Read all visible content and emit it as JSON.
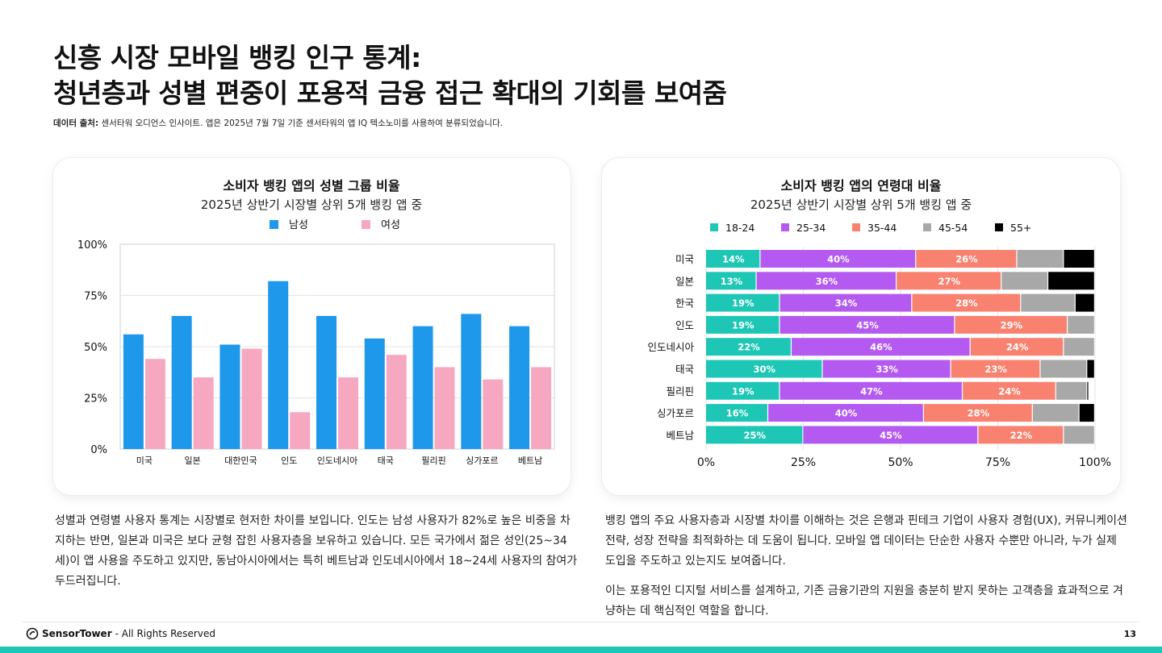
{
  "page": {
    "title_line1": "신흥 시장 모바일 뱅킹 인구 통계:",
    "title_line2": "청년층과 성별 편중이 포용적 금융 접근 확대의 기회를 보여줌",
    "source_label": "데이터 출처:",
    "source_text": "센서타워 오디언스 인사이트. 앱은 2025년 7월 7일 기준 센서타워의 앱 IQ 텍소노미를 사용하여 분류되었습니다.",
    "body_left": "성별과 연령별 사용자 통계는 시장별로 현저한 차이를 보입니다. 인도는 남성 사용자가 82%로 높은 비중을 차지하는 반면, 일본과 미국은 보다 균형 잡힌 사용자층을 보유하고 있습니다. 모든 국가에서 젊은 성인(25~34세)이 앱 사용을 주도하고 있지만, 동남아시아에서는 특히 베트남과 인도네시아에서 18~24세 사용자의 참여가 두드러집니다.",
    "body_right_p1": "뱅킹 앱의 주요 사용자층과 시장별 차이를 이해하는 것은 은행과 핀테크 기업이 사용자 경험(UX), 커뮤니케이션 전략, 성장 전략을 최적화하는 데 도움이 됩니다. 모바일 앱 데이터는 단순한 사용자 수뿐만 아니라, 누가 실제 도입을 주도하고 있는지도 보여줍니다.",
    "body_right_p2": "이는 포용적인 디지털 서비스를 설계하고, 기존 금융기관의 지원을 충분히 받지 못하는 고객층을 효과적으로 겨냥하는 데 핵심적인 역할을 합니다.",
    "footer_brand": "SensorTower",
    "footer_text": "- All Rights Reserved",
    "page_number": "13"
  },
  "colors": {
    "male": "#1e98ea",
    "female": "#f7a8c1",
    "age_18_24": "#1ec7b5",
    "age_25_34": "#b45af0",
    "age_35_44": "#f8826f",
    "age_45_54": "#a8a8a8",
    "age_55_plus": "#000000",
    "accent": "#1ec7b5"
  },
  "chart_data": [
    {
      "type": "bar",
      "title": "소비자 뱅킹 앱의 성별 그룹 비율",
      "subtitle": "2025년 상반기 시장별 상위 5개 뱅킹 앱 중",
      "categories": [
        "미국",
        "일본",
        "대한민국",
        "인도",
        "인도네시아",
        "태국",
        "필리핀",
        "싱가포르",
        "베트남"
      ],
      "series": [
        {
          "name": "남성",
          "values": [
            56,
            65,
            51,
            82,
            65,
            54,
            60,
            66,
            60
          ]
        },
        {
          "name": "여성",
          "values": [
            44,
            35,
            49,
            18,
            35,
            46,
            40,
            34,
            40
          ]
        }
      ],
      "ylim": [
        0,
        100
      ],
      "yticks": [
        "0%",
        "25%",
        "50%",
        "75%",
        "100%"
      ],
      "legend": "top-center",
      "grid": true
    },
    {
      "type": "bar",
      "orientation": "horizontal-stacked",
      "title": "소비자 뱅킹 앱의 연령대 비율",
      "subtitle": "2025년 상반기 시장별 상위 5개 뱅킹 앱 중",
      "categories": [
        "미국",
        "일본",
        "한국",
        "인도",
        "인도네시아",
        "태국",
        "필리핀",
        "싱가포르",
        "베트남"
      ],
      "series": [
        {
          "name": "18-24",
          "values": [
            14,
            13,
            19,
            19,
            22,
            30,
            19,
            16,
            25
          ]
        },
        {
          "name": "25-34",
          "values": [
            40,
            36,
            34,
            45,
            46,
            33,
            47,
            40,
            45
          ]
        },
        {
          "name": "35-44",
          "values": [
            26,
            27,
            28,
            29,
            24,
            23,
            24,
            28,
            22
          ]
        },
        {
          "name": "45-54",
          "values": [
            12,
            12,
            14,
            7,
            8,
            12,
            8,
            12,
            8
          ]
        },
        {
          "name": "55+",
          "values": [
            8,
            12,
            5,
            0,
            0,
            2,
            0.5,
            4,
            0
          ]
        }
      ],
      "xlim": [
        0,
        100
      ],
      "xticks": [
        "0%",
        "25%",
        "50%",
        "75%",
        "100%"
      ],
      "legend": "top-center",
      "labeled_series": [
        "18-24",
        "25-34",
        "35-44"
      ],
      "grid": true
    }
  ]
}
